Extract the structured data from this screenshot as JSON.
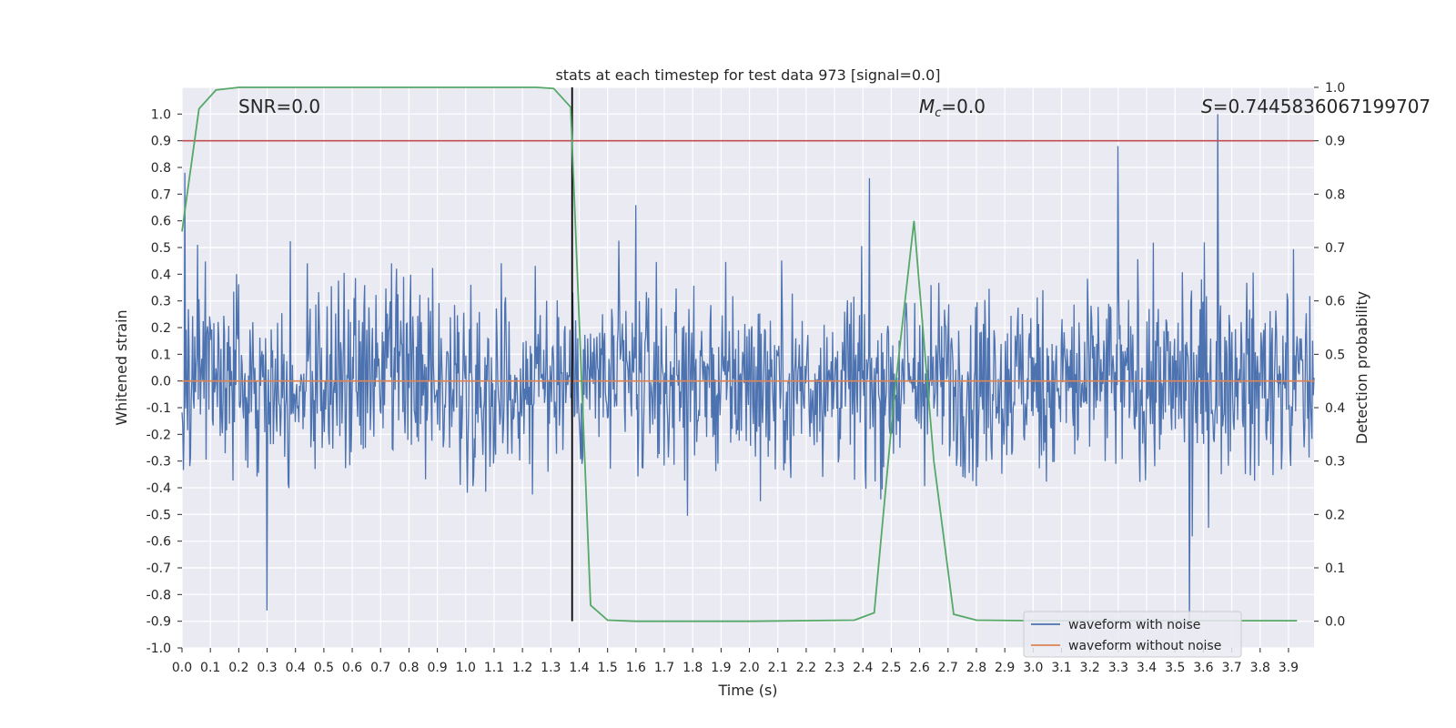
{
  "chart_data": {
    "type": "line",
    "title": "stats at each timestep for test data 973 [signal=0.0]",
    "xlabel": "Time (s)",
    "ylabel": "Whitened strain",
    "y2label": "Detection probability",
    "xlim": [
      0.0,
      3.99
    ],
    "ylim": [
      -1.0,
      1.1
    ],
    "y2lim": [
      -0.05,
      1.0
    ],
    "x_ticks": [
      "0.0",
      "0.1",
      "0.2",
      "0.3",
      "0.4",
      "0.5",
      "0.6",
      "0.7",
      "0.8",
      "0.9",
      "1.0",
      "1.1",
      "1.2",
      "1.3",
      "1.4",
      "1.5",
      "1.6",
      "1.7",
      "1.8",
      "1.9",
      "2.0",
      "2.1",
      "2.2",
      "2.3",
      "2.4",
      "2.5",
      "2.6",
      "2.7",
      "2.8",
      "2.9",
      "3.0",
      "3.1",
      "3.2",
      "3.3",
      "3.4",
      "3.5",
      "3.6",
      "3.7",
      "3.8",
      "3.9"
    ],
    "y_ticks": [
      "-1.0",
      "-0.9",
      "-0.8",
      "-0.7",
      "-0.6",
      "-0.5",
      "-0.4",
      "-0.3",
      "-0.2",
      "-0.1",
      "0.0",
      "0.1",
      "0.2",
      "0.3",
      "0.4",
      "0.5",
      "0.6",
      "0.7",
      "0.8",
      "0.9",
      "1.0"
    ],
    "y2_ticks": [
      "0.0",
      "0.1",
      "0.2",
      "0.3",
      "0.4",
      "0.5",
      "0.6",
      "0.7",
      "0.8",
      "0.9",
      "1.0"
    ],
    "grid": true,
    "annotations": {
      "snr": "SNR=0.0",
      "mc_symbol": "M",
      "mc_sub": "c",
      "mc_value": "=0.0",
      "s_symbol": "S",
      "s_value": "=0.7445836067199707"
    },
    "legend_position": "lower-right",
    "series": [
      {
        "name": "waveform with noise",
        "color": "#4c72b0",
        "description_range": [
          -0.93,
          1.0
        ],
        "peaks": [
          {
            "x": 0.01,
            "y": 0.78
          },
          {
            "x": 3.3,
            "y": 0.88
          },
          {
            "x": 3.65,
            "y": 1.0
          },
          {
            "x": 0.3,
            "y": -0.86
          },
          {
            "x": 3.55,
            "y": -0.93
          }
        ]
      },
      {
        "name": "waveform without noise",
        "color": "#dd8452",
        "y_constant": 0.0
      },
      {
        "name": "detection probability",
        "axis": "right",
        "color": "#55a868",
        "x": [
          0.0,
          0.06,
          0.12,
          0.2,
          0.5,
          1.0,
          1.25,
          1.31,
          1.37,
          1.44,
          1.5,
          1.6,
          2.0,
          2.37,
          2.44,
          2.51,
          2.58,
          2.65,
          2.72,
          2.8,
          3.0,
          3.5,
          3.93
        ],
        "y": [
          0.73,
          0.96,
          0.995,
          1.0,
          1.0,
          1.0,
          1.0,
          0.998,
          0.963,
          0.03,
          0.002,
          0.0,
          0.0,
          0.002,
          0.016,
          0.42,
          0.75,
          0.3,
          0.013,
          0.002,
          0.001,
          0.001,
          0.001
        ]
      }
    ],
    "hlines": [
      {
        "axis": "right",
        "y": 0.9,
        "color": "#c44e52"
      }
    ],
    "vlines": [
      {
        "x": 1.375,
        "y2_range": [
          0.0,
          1.0
        ],
        "color": "#000000"
      }
    ]
  }
}
